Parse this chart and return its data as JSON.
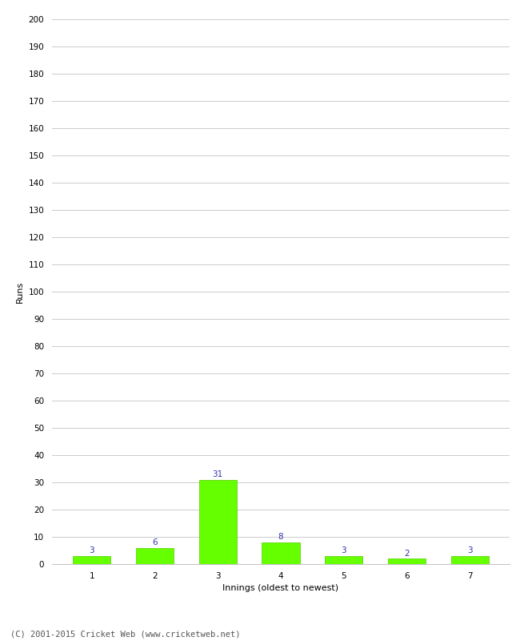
{
  "xlabel": "Innings (oldest to newest)",
  "ylabel": "Runs",
  "categories": [
    1,
    2,
    3,
    4,
    5,
    6,
    7
  ],
  "values": [
    3,
    6,
    31,
    8,
    3,
    2,
    3
  ],
  "bar_color": "#66ff00",
  "bar_edge_color": "#55cc00",
  "label_color": "#3333aa",
  "ylim": [
    0,
    200
  ],
  "yticks": [
    0,
    10,
    20,
    30,
    40,
    50,
    60,
    70,
    80,
    90,
    100,
    110,
    120,
    130,
    140,
    150,
    160,
    170,
    180,
    190,
    200
  ],
  "background_color": "#ffffff",
  "grid_color": "#cccccc",
  "footer": "(C) 2001-2015 Cricket Web (www.cricketweb.net)",
  "label_fontsize": 7.5,
  "axis_label_fontsize": 8,
  "tick_fontsize": 7.5,
  "footer_fontsize": 7.5
}
